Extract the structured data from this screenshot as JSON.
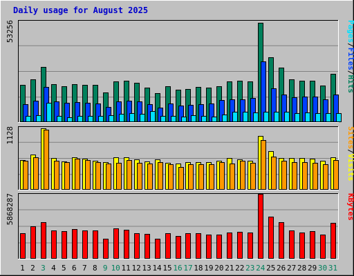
{
  "chart_data": {
    "type": "bar",
    "title": "Daily usage for August 2025",
    "categories": [
      "1",
      "2",
      "3",
      "4",
      "5",
      "6",
      "7",
      "8",
      "9",
      "10",
      "11",
      "12",
      "13",
      "14",
      "15",
      "16",
      "17",
      "18",
      "19",
      "20",
      "21",
      "22",
      "23",
      "24",
      "25",
      "26",
      "27",
      "28",
      "29",
      "30",
      "31"
    ],
    "weekend_days": [
      "3",
      "9",
      "10",
      "16",
      "17",
      "23",
      "24",
      "30",
      "31"
    ],
    "colors": {
      "background": "#c0c0c0",
      "plot_background": "#c0c0c0",
      "title": "#0000cc",
      "hits": "#00805c",
      "files": "#0040ff",
      "pages": "#00e0ff",
      "visits": "#ffff00",
      "sites": "#ff9900",
      "kbytes": "#ff0000",
      "weekday_label": "#000000",
      "weekend_label": "#00805c"
    },
    "panels": [
      {
        "id": "hits",
        "axis_max_label": "53256",
        "ylim": [
          0,
          53256
        ],
        "right_label": [
          {
            "text": "Pages",
            "color": "#00e0ff"
          },
          {
            "text": "/",
            "color": "#000000"
          },
          {
            "text": "Files",
            "color": "#0040ff"
          },
          {
            "text": "/",
            "color": "#000000"
          },
          {
            "text": "Hits",
            "color": "#00805c"
          }
        ],
        "series": [
          {
            "name": "Hits",
            "color": "#00805c",
            "values": [
              19500,
              22300,
              29100,
              19900,
              18900,
              19900,
              19700,
              19400,
              15700,
              21500,
              21800,
              20800,
              18200,
              15100,
              18800,
              17000,
              17400,
              18600,
              18100,
              18700,
              21300,
              21700,
              21300,
              52100,
              33900,
              28600,
              22300,
              21600,
              21900,
              19200,
              25200
            ]
          },
          {
            "name": "Files",
            "color": "#0040ff",
            "values": [
              9600,
              11400,
              18300,
              10700,
              10200,
              10400,
              10300,
              9900,
              8100,
              10800,
              11100,
              11000,
              9600,
              7500,
              9900,
              8700,
              8900,
              9500,
              9800,
              11500,
              11800,
              12000,
              12500,
              31800,
              17700,
              14500,
              13200,
              13300,
              13400,
              11800,
              14500
            ]
          },
          {
            "name": "Pages",
            "color": "#00e0ff",
            "values": [
              3300,
              3800,
              10100,
              3200,
              2700,
              3200,
              3300,
              3200,
              3700,
              4200,
              4600,
              4300,
              5800,
              3200,
              3400,
              3000,
              3500,
              3200,
              3000,
              3900,
              5500,
              5600,
              5200,
              5300,
              5300,
              5300,
              4800,
              5100,
              4700,
              4600,
              4700
            ]
          }
        ]
      },
      {
        "id": "visits",
        "axis_max_label": "1128",
        "ylim": [
          0,
          1128
        ],
        "right_label": [
          {
            "text": "Sites",
            "color": "#ff9900"
          },
          {
            "text": "/",
            "color": "#000000"
          },
          {
            "text": "Visits",
            "color": "#ffff00"
          }
        ],
        "series": [
          {
            "name": "Visits",
            "color": "#ffff00",
            "values": [
              532,
              632,
              1100,
              568,
              512,
              586,
              556,
              519,
              490,
              586,
              586,
              550,
              508,
              550,
              483,
              470,
              495,
              490,
              498,
              522,
              567,
              550,
              520,
              962,
              693,
              565,
              570,
              567,
              557,
              516,
              581
            ]
          },
          {
            "name": "Sites",
            "color": "#ff9900",
            "values": [
              524,
              588,
              1075,
              517,
              497,
              563,
              534,
              502,
              476,
              485,
              532,
              483,
              476,
              497,
              457,
              407,
              456,
              453,
              462,
              493,
              472,
              523,
              485,
              894,
              594,
              526,
              502,
              491,
              484,
              455,
              529
            ]
          }
        ]
      },
      {
        "id": "kbytes",
        "axis_max_label": "5868287",
        "ylim": [
          0,
          5868287
        ],
        "right_label": [
          {
            "text": "KBytes",
            "color": "#ff0000"
          }
        ],
        "series": [
          {
            "name": "KBytes",
            "color": "#ff0000",
            "values": [
              2315000,
              2960000,
              3289000,
              2570000,
              2517000,
              2684000,
              2538000,
              2538000,
              1836000,
              2740000,
              2621000,
              2287000,
              2259000,
              1839000,
              2287000,
              2061000,
              2287000,
              2315000,
              2175000,
              2175000,
              2370000,
              2454000,
              2370000,
              5868000,
              3790000,
              3289000,
              2538000,
              2370000,
              2485000,
              2175000,
              3231000
            ]
          }
        ]
      }
    ]
  }
}
